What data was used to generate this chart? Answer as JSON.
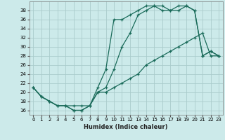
{
  "xlabel": "Humidex (Indice chaleur)",
  "bg_color": "#cceaea",
  "grid_color": "#aacccc",
  "line_color": "#1a6b5a",
  "xlim": [
    -0.5,
    23.5
  ],
  "ylim": [
    15.0,
    40.0
  ],
  "xticks": [
    0,
    1,
    2,
    3,
    4,
    5,
    6,
    7,
    8,
    9,
    10,
    11,
    12,
    13,
    14,
    15,
    16,
    17,
    18,
    19,
    20,
    21,
    22,
    23
  ],
  "yticks": [
    16,
    18,
    20,
    22,
    24,
    26,
    28,
    30,
    32,
    34,
    36,
    38
  ],
  "line1_x": [
    0,
    1,
    2,
    3,
    4,
    5,
    6,
    7,
    8,
    9,
    10,
    11,
    12,
    13,
    14,
    15,
    16,
    17,
    18,
    19,
    20,
    21,
    22,
    23
  ],
  "line1_y": [
    21,
    19,
    18,
    17,
    17,
    16,
    16,
    17,
    20,
    21,
    25,
    30,
    33,
    37,
    38,
    39,
    39,
    38,
    38,
    39,
    38,
    28,
    29,
    28
  ],
  "line2_x": [
    0,
    1,
    2,
    3,
    4,
    5,
    6,
    7,
    8,
    9,
    10,
    11,
    12,
    13,
    14,
    15,
    16,
    17,
    18,
    19,
    20,
    21,
    22,
    23
  ],
  "line2_y": [
    21,
    19,
    18,
    17,
    17,
    16,
    16,
    17,
    21,
    25,
    36,
    36,
    37,
    38,
    39,
    39,
    38,
    38,
    39,
    39,
    38,
    28,
    29,
    28
  ],
  "line3_x": [
    0,
    1,
    2,
    3,
    4,
    5,
    6,
    7,
    8,
    9,
    10,
    11,
    12,
    13,
    14,
    15,
    16,
    17,
    18,
    19,
    20,
    21,
    22,
    23
  ],
  "line3_y": [
    21,
    19,
    18,
    17,
    17,
    17,
    17,
    17,
    20,
    20,
    21,
    22,
    23,
    24,
    26,
    27,
    28,
    29,
    30,
    31,
    32,
    33,
    28,
    28
  ]
}
